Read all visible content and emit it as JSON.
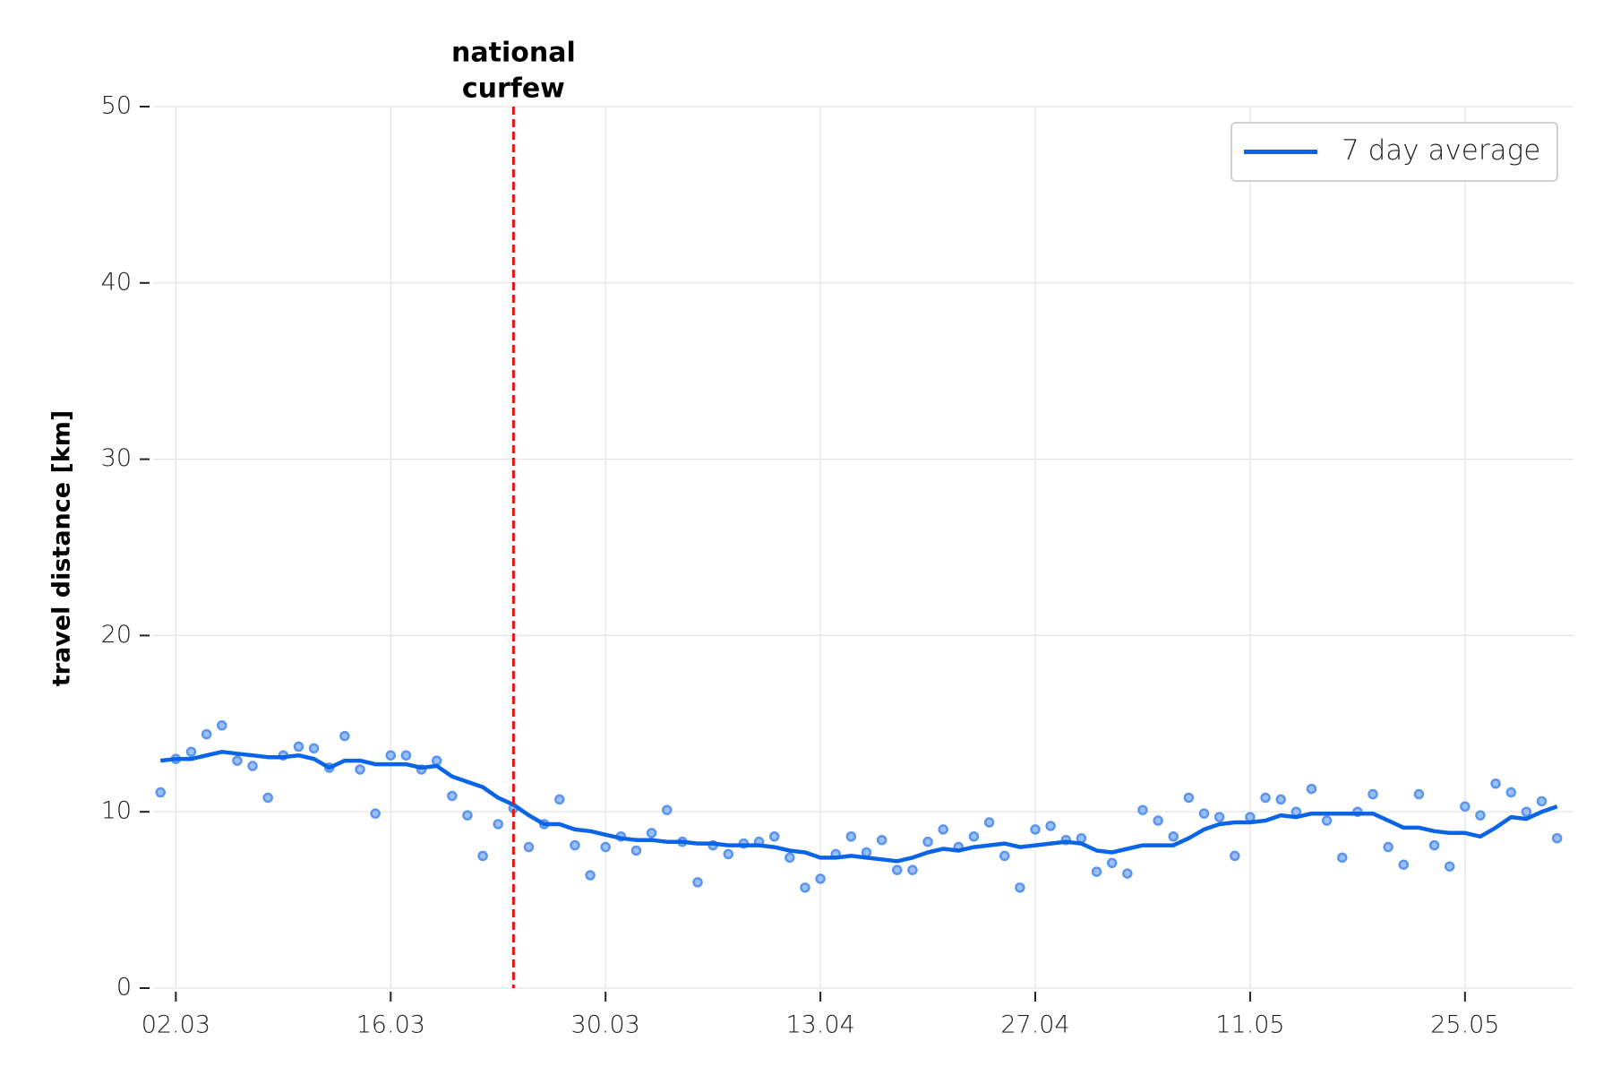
{
  "chart_data": {
    "type": "line",
    "ylabel": "travel distance [km]",
    "x": [
      "01.03",
      "02.03",
      "03.03",
      "04.03",
      "05.03",
      "06.03",
      "07.03",
      "08.03",
      "09.03",
      "10.03",
      "11.03",
      "12.03",
      "13.03",
      "14.03",
      "15.03",
      "16.03",
      "17.03",
      "18.03",
      "19.03",
      "20.03",
      "21.03",
      "22.03",
      "23.03",
      "24.03",
      "25.03",
      "26.03",
      "27.03",
      "28.03",
      "29.03",
      "30.03",
      "31.03",
      "01.04",
      "02.04",
      "03.04",
      "04.04",
      "05.04",
      "06.04",
      "07.04",
      "08.04",
      "09.04",
      "10.04",
      "11.04",
      "12.04",
      "13.04",
      "14.04",
      "15.04",
      "16.04",
      "17.04",
      "18.04",
      "19.04",
      "20.04",
      "21.04",
      "22.04",
      "23.04",
      "24.04",
      "25.04",
      "26.04",
      "27.04",
      "28.04",
      "29.04",
      "30.04",
      "01.05",
      "02.05",
      "03.05",
      "04.05",
      "05.05",
      "06.05",
      "07.05",
      "08.05",
      "09.05",
      "10.05",
      "11.05",
      "12.05",
      "13.05",
      "14.05",
      "15.05",
      "16.05",
      "17.05",
      "18.05",
      "19.05",
      "20.05",
      "21.05",
      "22.05",
      "23.05",
      "24.05",
      "25.05",
      "26.05",
      "27.05",
      "28.05",
      "29.05",
      "30.05",
      "31.05"
    ],
    "xticks": [
      "02.03",
      "16.03",
      "30.03",
      "13.04",
      "27.04",
      "11.05",
      "25.05"
    ],
    "ylim": [
      0,
      50
    ],
    "yticks": [
      0,
      10,
      20,
      30,
      40,
      50
    ],
    "grid": true,
    "legend": "upper right",
    "points": {
      "color": "#5b95ee",
      "values": [
        11.1,
        13.0,
        13.4,
        14.4,
        14.9,
        12.9,
        12.6,
        10.8,
        13.2,
        13.7,
        13.6,
        12.5,
        14.3,
        12.4,
        9.9,
        13.2,
        13.2,
        12.4,
        12.9,
        10.9,
        9.8,
        7.5,
        9.3,
        10.2,
        8.0,
        9.3,
        10.7,
        8.1,
        6.4,
        8.0,
        8.6,
        7.8,
        8.8,
        10.1,
        8.3,
        6.0,
        8.1,
        7.6,
        8.2,
        8.3,
        8.6,
        7.4,
        5.7,
        6.2,
        7.6,
        8.6,
        7.7,
        8.4,
        6.7,
        6.7,
        8.3,
        9.0,
        8.0,
        8.6,
        9.4,
        7.5,
        5.7,
        9.0,
        9.2,
        8.4,
        8.5,
        6.6,
        7.1,
        6.5,
        10.1,
        9.5,
        8.6,
        10.8,
        9.9,
        9.7,
        7.5,
        9.7,
        10.8,
        10.7,
        10.0,
        11.3,
        9.5,
        7.4,
        10.0,
        11.0,
        8.0,
        7.0,
        11.0,
        8.1,
        6.9,
        10.3,
        9.8,
        11.6,
        11.1,
        10.0,
        10.6,
        8.5
      ]
    },
    "series": [
      {
        "name": "7 day average",
        "color": "#0a64e8",
        "values": [
          12.9,
          13.0,
          13.0,
          13.2,
          13.4,
          13.3,
          13.2,
          13.1,
          13.1,
          13.2,
          13.0,
          12.5,
          12.9,
          12.9,
          12.7,
          12.7,
          12.7,
          12.5,
          12.6,
          12.0,
          11.7,
          11.4,
          10.8,
          10.4,
          9.8,
          9.3,
          9.3,
          9.0,
          8.9,
          8.7,
          8.5,
          8.4,
          8.4,
          8.3,
          8.3,
          8.2,
          8.2,
          8.1,
          8.1,
          8.1,
          8.0,
          7.8,
          7.7,
          7.4,
          7.4,
          7.5,
          7.4,
          7.3,
          7.2,
          7.4,
          7.7,
          7.9,
          7.8,
          8.0,
          8.1,
          8.2,
          8.0,
          8.1,
          8.2,
          8.3,
          8.2,
          7.8,
          7.7,
          7.9,
          8.1,
          8.1,
          8.1,
          8.5,
          9.0,
          9.3,
          9.4,
          9.4,
          9.5,
          9.8,
          9.7,
          9.9,
          9.9,
          9.9,
          9.9,
          9.9,
          9.5,
          9.1,
          9.1,
          8.9,
          8.8,
          8.8,
          8.6,
          9.1,
          9.7,
          9.6,
          10.0,
          10.3
        ]
      }
    ],
    "annotations": [
      {
        "x": "24.03",
        "lines": [
          "national",
          "curfew"
        ],
        "color": "#ee1111"
      }
    ]
  }
}
